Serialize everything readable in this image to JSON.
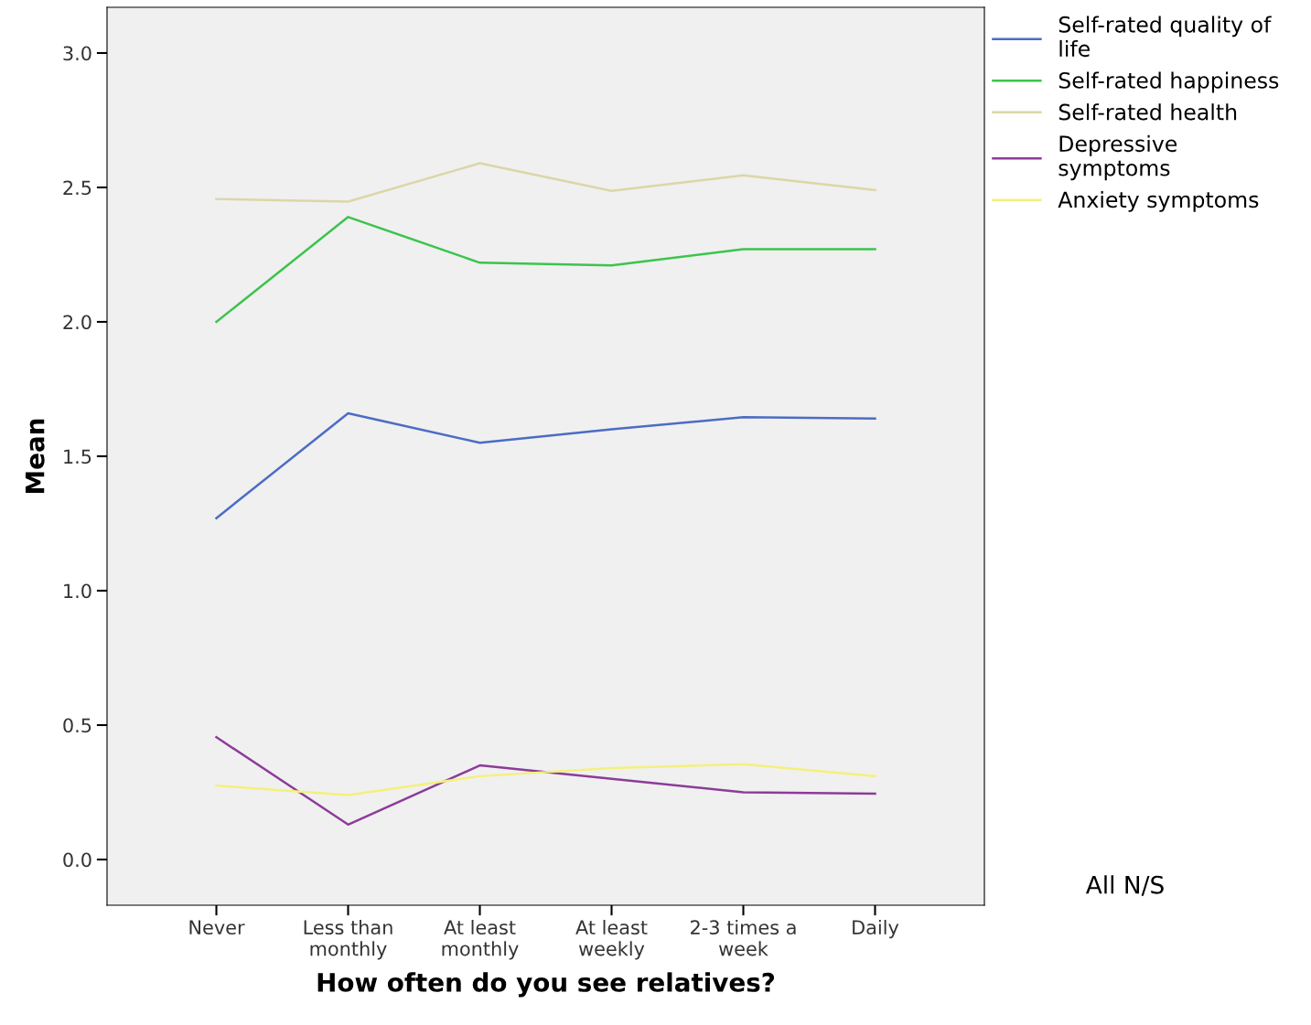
{
  "chart_data": {
    "type": "line",
    "xlabel": "How often do you see relatives?",
    "ylabel": "Mean",
    "categories": [
      "Never",
      "Less than\nmonthly",
      "At least\nmonthly",
      "At least\nweekly",
      "2-3 times a\nweek",
      "Daily"
    ],
    "series": [
      {
        "name": "Self-rated quality of\nlife",
        "color": "#4c6cc4",
        "values": [
          1.27,
          1.66,
          1.55,
          1.6,
          1.645,
          1.64
        ]
      },
      {
        "name": "Self-rated happiness",
        "color": "#3cc44c",
        "values": [
          2.0,
          2.39,
          2.22,
          2.21,
          2.27,
          2.27
        ]
      },
      {
        "name": "Self-rated health",
        "color": "#dcd6a8",
        "values": [
          2.457,
          2.447,
          2.59,
          2.487,
          2.545,
          2.49
        ]
      },
      {
        "name": "Depressive\nsymptoms",
        "color": "#8c3c98",
        "values": [
          0.455,
          0.13,
          0.35,
          0.3,
          0.25,
          0.245
        ]
      },
      {
        "name": "Anxiety symptoms",
        "color": "#f4f07c",
        "values": [
          0.275,
          0.24,
          0.31,
          0.34,
          0.355,
          0.31
        ]
      }
    ],
    "ylim": [
      -0.17,
      3.17
    ],
    "yticks": [
      {
        "value": 0,
        "label": "0.0"
      },
      {
        "value": 0.5,
        "label": "0.5"
      },
      {
        "value": 1,
        "label": "1.0"
      },
      {
        "value": 1.5,
        "label": "1.5"
      },
      {
        "value": 2,
        "label": "2.0"
      },
      {
        "value": 2.5,
        "label": "2.5"
      },
      {
        "value": 3,
        "label": "3.0"
      }
    ],
    "grid": false,
    "legend": "top right",
    "marker": "none",
    "line_style": "solid",
    "annotations": [
      "All N/S"
    ]
  }
}
